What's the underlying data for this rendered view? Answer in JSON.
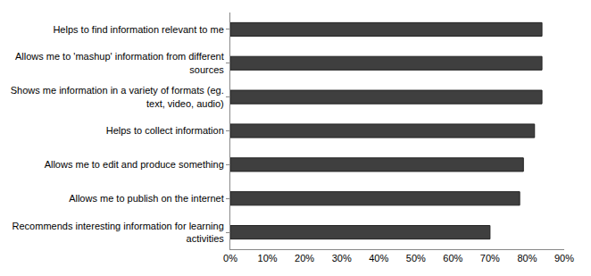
{
  "chart_data": {
    "type": "bar",
    "orientation": "horizontal",
    "categories": [
      "Helps to find information relevant to me",
      "Allows me to 'mashup' information from different sources",
      "Shows me information in a variety of formats (eg. text, video, audio)",
      "Helps to collect information",
      "Allows me to edit and produce something",
      "Allows me to publish on the internet",
      "Recommends interesting information for learning activities"
    ],
    "values": [
      84,
      84,
      84,
      82,
      79,
      78,
      70
    ],
    "color": "#3f3f3f",
    "xlim": [
      0,
      90
    ],
    "xticks": [
      {
        "value": 0,
        "label": "0%"
      },
      {
        "value": 10,
        "label": "10%"
      },
      {
        "value": 20,
        "label": "20%"
      },
      {
        "value": 30,
        "label": "30%"
      },
      {
        "value": 40,
        "label": "40%"
      },
      {
        "value": 50,
        "label": "50%"
      },
      {
        "value": 60,
        "label": "60%"
      },
      {
        "value": 70,
        "label": "70%"
      },
      {
        "value": 80,
        "label": "80%"
      },
      {
        "value": 90,
        "label": "90%"
      }
    ],
    "grid": false
  }
}
